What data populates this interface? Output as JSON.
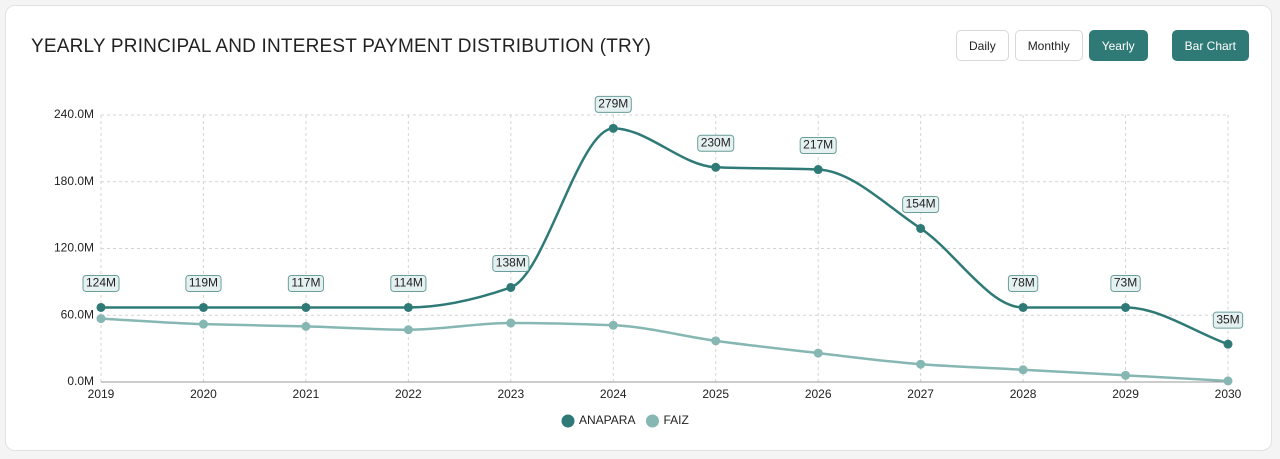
{
  "header": {
    "title": "YEARLY PRINCIPAL AND INTEREST PAYMENT DISTRIBUTION (TRY)"
  },
  "controls": {
    "periods": [
      {
        "label": "Daily",
        "active": false
      },
      {
        "label": "Monthly",
        "active": false
      },
      {
        "label": "Yearly",
        "active": true
      }
    ],
    "chart_toggle": "Bar Chart"
  },
  "chart_data": {
    "type": "line",
    "categories": [
      "2019",
      "2020",
      "2021",
      "2022",
      "2023",
      "2024",
      "2025",
      "2026",
      "2027",
      "2028",
      "2029",
      "2030"
    ],
    "series": [
      {
        "name": "ANAPARA",
        "color": "#2f7a76",
        "values": [
          67,
          67,
          67,
          67,
          85,
          228,
          193,
          191,
          138,
          67,
          67,
          34
        ]
      },
      {
        "name": "FAIZ",
        "color": "#86b7b3",
        "values": [
          57,
          52,
          50,
          47,
          53,
          51,
          37,
          26,
          16,
          11,
          6,
          1
        ]
      }
    ],
    "totals": [
      124,
      119,
      117,
      114,
      138,
      279,
      230,
      217,
      154,
      78,
      73,
      35
    ],
    "total_labels": [
      "124M",
      "119M",
      "117M",
      "114M",
      "138M",
      "279M",
      "230M",
      "217M",
      "154M",
      "78M",
      "73M",
      "35M"
    ],
    "ylim": [
      0,
      240
    ],
    "yticks": [
      {
        "value": 0,
        "label": "0.0M"
      },
      {
        "value": 60,
        "label": "60.0M"
      },
      {
        "value": 120,
        "label": "120.0M"
      },
      {
        "value": 180,
        "label": "180.0M"
      },
      {
        "value": 240,
        "label": "240.0M"
      }
    ],
    "grid": true,
    "smooth": true,
    "legend": "bottom"
  }
}
